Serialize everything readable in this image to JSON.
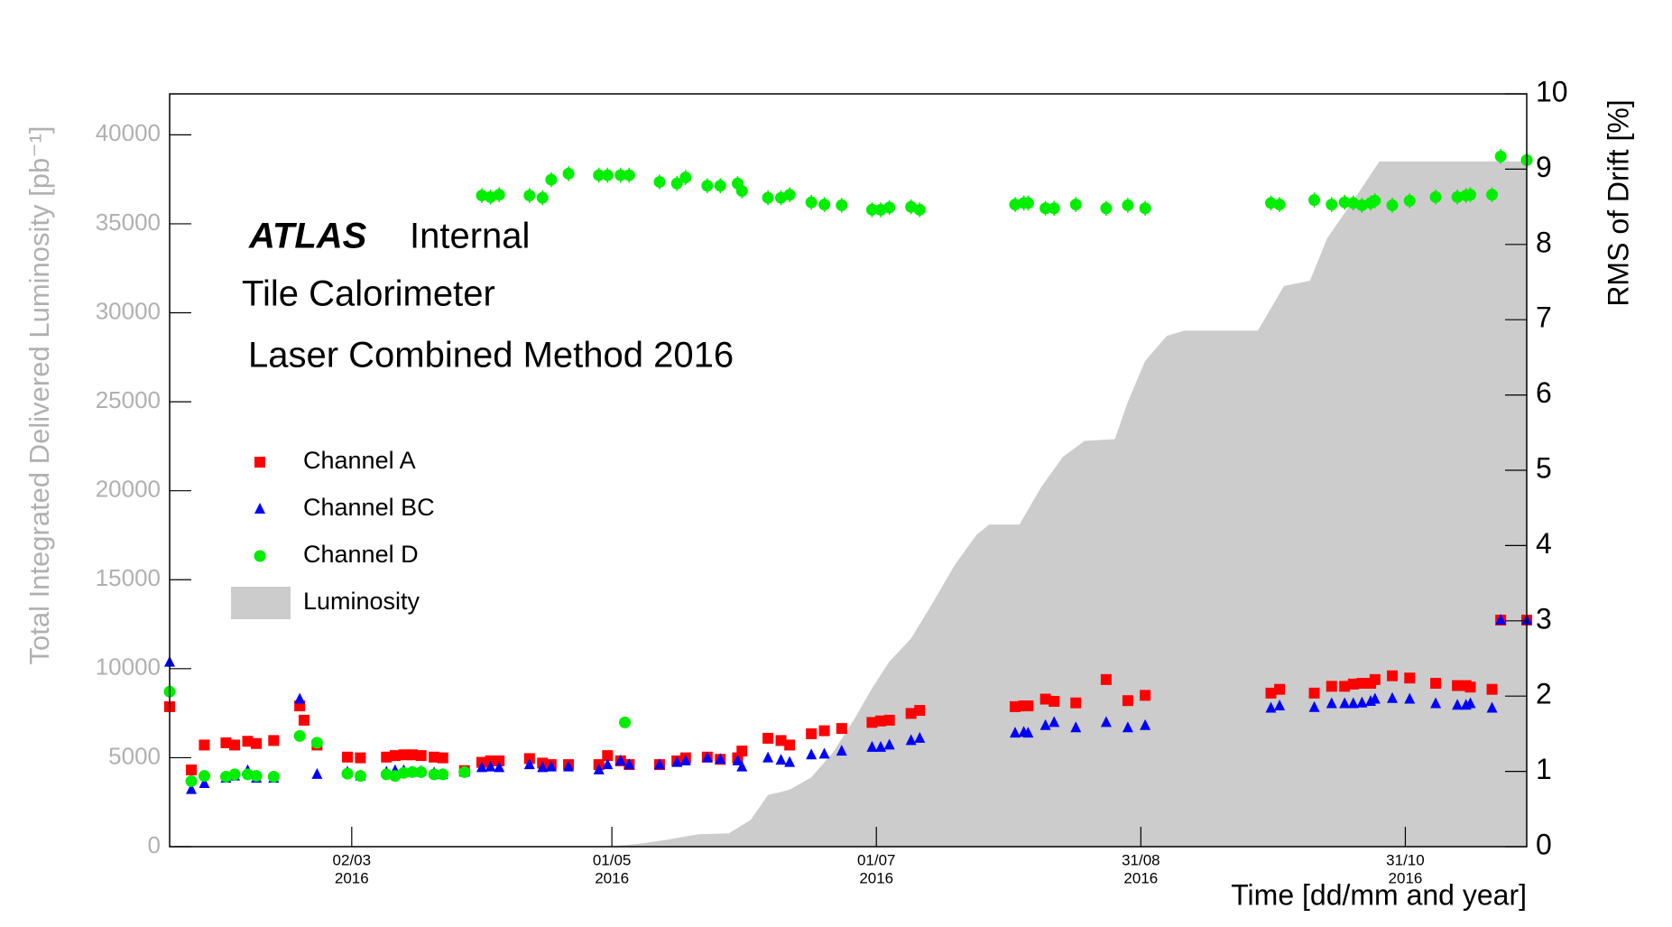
{
  "chart_data": {
    "type": "scatter",
    "annotations": [
      "ATLAS",
      "Internal",
      "Tile Calorimeter",
      "Laser Combined Method 2016"
    ],
    "xlabel": "Time [dd/mm and year]",
    "ylabel": "Total Integrated Delivered Luminosity [pb⁻¹]",
    "y2label": "RMS of Drift [%]",
    "legend": "upper left",
    "xlim": [
      "2016-01-20",
      "2016-11-28"
    ],
    "xticks": [
      {
        "value": "2016-03-02",
        "label": [
          "02/03",
          "2016"
        ]
      },
      {
        "value": "2016-05-01",
        "label": [
          "01/05",
          "2016"
        ]
      },
      {
        "value": "2016-07-01",
        "label": [
          "01/07",
          "2016"
        ]
      },
      {
        "value": "2016-08-31",
        "label": [
          "31/08",
          "2016"
        ]
      },
      {
        "value": "2016-10-31",
        "label": [
          "31/10",
          "2016"
        ]
      }
    ],
    "ylim": [
      0,
      42300
    ],
    "yticks": [
      0,
      5000,
      10000,
      15000,
      20000,
      25000,
      30000,
      35000,
      40000
    ],
    "y2lim": [
      0,
      10
    ],
    "y2ticks": [
      0,
      1,
      2,
      3,
      4,
      5,
      6,
      7,
      8,
      9,
      10
    ],
    "x": [
      "2016-01-20",
      "2016-01-25",
      "2016-01-28",
      "2016-02-02",
      "2016-02-04",
      "2016-02-07",
      "2016-02-09",
      "2016-02-13",
      "2016-02-19",
      "2016-02-20",
      "2016-02-23",
      "2016-03-01",
      "2016-03-04",
      "2016-03-10",
      "2016-03-12",
      "2016-03-14",
      "2016-03-16",
      "2016-03-18",
      "2016-03-21",
      "2016-03-23",
      "2016-03-28",
      "2016-04-01",
      "2016-04-03",
      "2016-04-05",
      "2016-04-12",
      "2016-04-15",
      "2016-04-17",
      "2016-04-21",
      "2016-04-28",
      "2016-04-30",
      "2016-05-03",
      "2016-05-04",
      "2016-05-05",
      "2016-05-12",
      "2016-05-16",
      "2016-05-18",
      "2016-05-23",
      "2016-05-26",
      "2016-05-30",
      "2016-05-31",
      "2016-06-06",
      "2016-06-09",
      "2016-06-11",
      "2016-06-16",
      "2016-06-19",
      "2016-06-23",
      "2016-06-30",
      "2016-07-02",
      "2016-07-04",
      "2016-07-09",
      "2016-07-11",
      "2016-08-02",
      "2016-08-04",
      "2016-08-05",
      "2016-08-09",
      "2016-08-11",
      "2016-08-16",
      "2016-08-23",
      "2016-08-28",
      "2016-09-01",
      "2016-09-30",
      "2016-10-02",
      "2016-10-10",
      "2016-10-14",
      "2016-10-17",
      "2016-10-19",
      "2016-10-21",
      "2016-10-23",
      "2016-10-24",
      "2016-10-28",
      "2016-11-01",
      "2016-11-07",
      "2016-11-12",
      "2016-11-14",
      "2016-11-15",
      "2016-11-20",
      "2016-11-22",
      "2016-11-28"
    ],
    "series": [
      {
        "name": "Channel A",
        "color": "#ff0000",
        "marker": "square",
        "axis": "y2",
        "values": [
          1.86,
          1.02,
          1.35,
          1.38,
          1.35,
          1.4,
          1.37,
          1.41,
          1.87,
          1.68,
          1.35,
          1.19,
          1.18,
          1.19,
          1.21,
          1.22,
          1.22,
          1.21,
          1.19,
          1.18,
          1.01,
          1.12,
          1.14,
          1.14,
          1.17,
          1.11,
          1.09,
          1.09,
          1.09,
          1.21,
          1.14,
          null,
          1.09,
          1.09,
          1.14,
          1.18,
          1.19,
          1.16,
          1.18,
          1.27,
          1.44,
          1.41,
          1.35,
          1.5,
          1.54,
          1.57,
          1.65,
          1.67,
          1.68,
          1.77,
          1.81,
          1.86,
          1.87,
          1.87,
          1.96,
          1.93,
          1.91,
          2.22,
          1.94,
          2.01,
          2.04,
          2.09,
          2.04,
          2.13,
          2.13,
          2.16,
          2.17,
          2.17,
          2.22,
          2.27,
          2.24,
          2.17,
          2.14,
          2.14,
          2.12,
          2.09,
          3.01,
          3.01
        ]
      },
      {
        "name": "Channel BC",
        "color": "#0000ff",
        "marker": "triangle",
        "axis": "y2",
        "values": [
          2.45,
          0.76,
          0.84,
          0.91,
          0.94,
          1.01,
          0.91,
          0.91,
          1.96,
          null,
          0.96,
          0.99,
          0.94,
          0.99,
          1.01,
          1.01,
          0.99,
          1.0,
          0.98,
          0.96,
          0.99,
          1.05,
          1.06,
          1.05,
          1.09,
          1.05,
          1.06,
          1.06,
          1.02,
          1.09,
          1.14,
          null,
          1.09,
          1.09,
          1.12,
          1.14,
          1.18,
          1.16,
          1.14,
          1.06,
          1.18,
          1.15,
          1.12,
          1.22,
          1.23,
          1.27,
          1.32,
          1.32,
          1.35,
          1.41,
          1.44,
          1.51,
          1.52,
          1.51,
          1.61,
          1.65,
          1.58,
          1.65,
          1.58,
          1.61,
          1.84,
          1.87,
          1.85,
          1.9,
          1.9,
          1.9,
          1.91,
          1.93,
          1.96,
          1.97,
          1.96,
          1.9,
          1.88,
          1.88,
          1.9,
          1.84,
          3.01,
          3.01
        ]
      },
      {
        "name": "Channel D",
        "color": "#00ee00",
        "marker": "circle",
        "axis": "y2",
        "values": [
          2.06,
          0.87,
          0.94,
          0.93,
          0.96,
          0.96,
          0.94,
          0.93,
          1.47,
          null,
          1.38,
          0.97,
          0.94,
          0.96,
          0.94,
          0.98,
          0.99,
          0.99,
          0.96,
          0.96,
          0.99,
          8.65,
          8.63,
          8.66,
          8.65,
          8.62,
          8.86,
          8.94,
          8.92,
          8.92,
          8.92,
          1.65,
          8.92,
          8.83,
          8.81,
          8.89,
          8.78,
          8.78,
          8.81,
          8.71,
          8.62,
          8.62,
          8.66,
          8.56,
          8.53,
          8.52,
          8.46,
          8.46,
          8.49,
          8.5,
          8.46,
          8.53,
          8.55,
          8.55,
          8.48,
          8.48,
          8.53,
          8.48,
          8.52,
          8.48,
          8.55,
          8.53,
          8.59,
          8.53,
          8.56,
          8.55,
          8.52,
          8.55,
          8.58,
          8.52,
          8.58,
          8.63,
          8.63,
          8.65,
          8.66,
          8.66,
          9.17,
          9.12
        ],
        "errors": [
          null,
          null,
          null,
          null,
          null,
          null,
          null,
          null,
          null,
          null,
          null,
          null,
          null,
          null,
          null,
          null,
          null,
          null,
          null,
          null,
          null,
          0.1,
          0.1,
          0.1,
          0.1,
          0.1,
          0.1,
          0.1,
          0.1,
          0.1,
          0.1,
          null,
          0.1,
          0.1,
          0.1,
          0.1,
          0.1,
          0.1,
          0.1,
          0.1,
          0.1,
          0.1,
          0.1,
          0.1,
          0.1,
          0.1,
          0.1,
          0.1,
          0.1,
          0.1,
          0.1,
          0.1,
          0.1,
          0.1,
          0.1,
          0.1,
          0.1,
          0.1,
          0.1,
          0.1,
          0.1,
          0.1,
          0.1,
          0.1,
          0.1,
          0.1,
          0.1,
          0.1,
          0.1,
          0.1,
          0.1,
          0.1,
          0.1,
          0.1,
          0.1,
          0.1,
          0.1,
          0.1
        ]
      },
      {
        "name": "Luminosity",
        "color": "#cccccc",
        "type": "area",
        "axis": "y",
        "x": [
          "2016-04-30",
          "2016-05-07",
          "2016-05-14",
          "2016-05-21",
          "2016-05-28",
          "2016-06-02",
          "2016-06-06",
          "2016-06-11",
          "2016-06-16",
          "2016-06-21",
          "2016-06-26",
          "2016-06-30",
          "2016-07-04",
          "2016-07-09",
          "2016-07-14",
          "2016-07-19",
          "2016-07-24",
          "2016-07-27",
          "2016-08-03",
          "2016-08-08",
          "2016-08-13",
          "2016-08-18",
          "2016-08-25",
          "2016-08-28",
          "2016-09-01",
          "2016-09-06",
          "2016-09-10",
          "2016-09-27",
          "2016-10-03",
          "2016-10-09",
          "2016-10-13",
          "2016-10-19",
          "2016-10-25",
          "2016-11-28"
        ],
        "values": [
          0,
          150,
          400,
          700,
          750,
          1500,
          2900,
          3200,
          3900,
          5300,
          7200,
          8900,
          10400,
          11700,
          13700,
          15800,
          17500,
          18100,
          18100,
          20200,
          21900,
          22800,
          22900,
          25000,
          27300,
          28700,
          29000,
          29000,
          31500,
          31800,
          34200,
          36300,
          38500,
          38500
        ]
      }
    ]
  }
}
